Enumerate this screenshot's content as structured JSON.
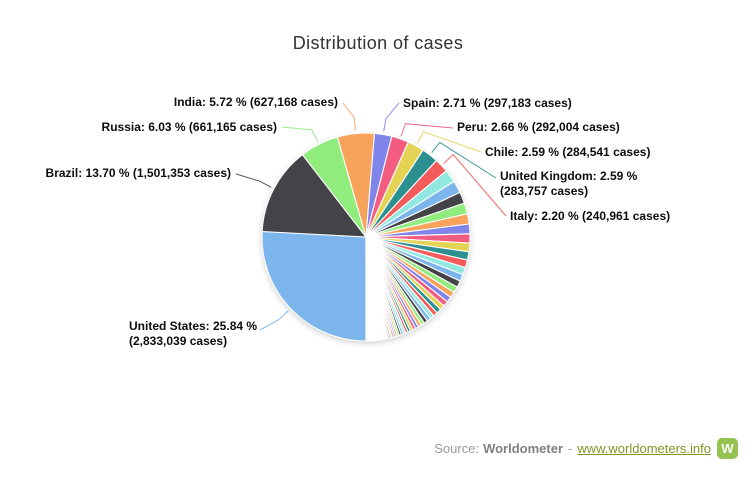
{
  "title": "Distribution of cases",
  "source": {
    "prefix": "Source:",
    "brand": "Worldometer",
    "separator": "-",
    "link_text": "www.worldometers.info",
    "logo_letter": "W",
    "logo_color": "#94c351",
    "link_color": "#7d9727"
  },
  "chart_data": {
    "type": "pie",
    "title": "Distribution of cases",
    "start_angle_deg": 180,
    "direction": "clockwise",
    "legend": "none",
    "palette": [
      "#7cb5ec",
      "#434348",
      "#90ed7d",
      "#f7a35c",
      "#8085e9",
      "#f15c80",
      "#e4d354",
      "#2b908f",
      "#f45b5b",
      "#91e8e1"
    ],
    "series": [
      {
        "name": "United States",
        "percent": 25.84,
        "cases": "2,833,039",
        "color": "#7cb5ec",
        "label_lines": [
          "United States: 25.84 %",
          "(2,833,039 cases)"
        ]
      },
      {
        "name": "Brazil",
        "percent": 13.7,
        "cases": "1,501,353",
        "color": "#434348",
        "label_lines": [
          "Brazil: 13.70 % (1,501,353 cases)"
        ]
      },
      {
        "name": "Russia",
        "percent": 6.03,
        "cases": "661,165",
        "color": "#90ed7d",
        "label_lines": [
          "Russia: 6.03 % (661,165 cases)"
        ]
      },
      {
        "name": "India",
        "percent": 5.72,
        "cases": "627,168",
        "color": "#f7a35c",
        "label_lines": [
          "India: 5.72 % (627,168 cases)"
        ]
      },
      {
        "name": "Spain",
        "percent": 2.71,
        "cases": "297,183",
        "color": "#8085e9",
        "label_lines": [
          "Spain: 2.71 % (297,183 cases)"
        ]
      },
      {
        "name": "Peru",
        "percent": 2.66,
        "cases": "292,004",
        "color": "#f15c80",
        "label_lines": [
          "Peru: 2.66 % (292,004 cases)"
        ]
      },
      {
        "name": "Chile",
        "percent": 2.59,
        "cases": "284,541",
        "color": "#e4d354",
        "label_lines": [
          "Chile: 2.59 % (284,541 cases)"
        ]
      },
      {
        "name": "United Kingdom",
        "percent": 2.59,
        "cases": "283,757",
        "color": "#2b908f",
        "label_lines": [
          "United Kingdom: 2.59 %",
          "(283,757 cases)"
        ]
      },
      {
        "name": "Italy",
        "percent": 2.2,
        "cases": "240,961",
        "color": "#f45b5b",
        "label_lines": [
          "Italy: 2.20 % (240,961 cases)"
        ]
      }
    ],
    "unlabeled_total_percent": 35.96,
    "unlabeled_slices_estimated": true,
    "unlabeled_slices_percent": [
      2.02,
      1.909,
      1.804,
      1.705,
      1.611,
      1.522,
      1.439,
      1.36,
      1.285,
      1.214,
      1.147,
      1.084,
      1.025,
      0.968,
      0.915,
      0.865,
      0.817,
      0.772,
      0.73,
      0.69,
      0.652,
      0.616,
      0.582,
      0.55,
      0.52,
      0.491,
      0.464,
      0.439,
      0.415,
      0.392,
      0.37,
      0.35,
      0.331,
      0.313,
      0.295,
      0.279,
      0.264,
      0.249,
      0.236,
      0.223,
      0.21,
      0.199,
      0.188,
      0.178,
      0.168,
      0.159,
      0.15,
      0.142,
      0.134,
      0.127,
      0.12,
      0.113,
      0.107,
      0.101,
      0.095,
      0.09,
      0.085,
      0.081,
      0.076,
      0.072,
      0.068,
      0.064,
      0.061,
      0.057,
      0.054,
      0.051,
      0.048,
      0.046,
      0.043,
      0.041,
      0.039,
      0.037,
      0.035,
      0.033,
      0.031,
      0.029,
      0.028,
      0.026
    ]
  }
}
